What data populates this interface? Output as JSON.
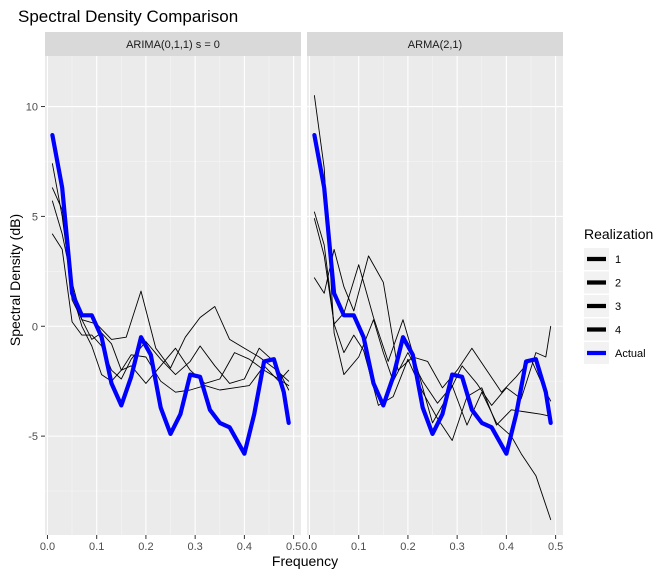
{
  "chart_data": {
    "type": "line",
    "title": "Spectral Density Comparison",
    "xlabel": "Frequency",
    "ylabel": "Spectral Density (dB)",
    "xlim": [
      -0.005,
      0.515
    ],
    "ylim": [
      -9.5,
      12.3
    ],
    "x_ticks": [
      0.0,
      0.1,
      0.2,
      0.3,
      0.4,
      0.5
    ],
    "x_tick_labels": [
      "0.0",
      "0.1",
      "0.2",
      "0.3",
      "0.4",
      "0.5"
    ],
    "y_ticks": [
      -5,
      0,
      5,
      10
    ],
    "y_tick_labels": [
      "-5",
      "0",
      "5",
      "10"
    ],
    "grid": true,
    "legend": {
      "title": "Realization",
      "position": "right",
      "entries": [
        {
          "label": "1",
          "color": "#000000"
        },
        {
          "label": "2",
          "color": "#000000"
        },
        {
          "label": "3",
          "color": "#000000"
        },
        {
          "label": "4",
          "color": "#000000"
        },
        {
          "label": "Actual",
          "color": "#0000FF"
        }
      ]
    },
    "panels": [
      {
        "strip": "ARIMA(0,1,1) s = 0",
        "series": [
          {
            "name": "1",
            "color": "#000000",
            "points": [
              [
                0.01,
                7.4
              ],
              [
                0.03,
                5.0
              ],
              [
                0.05,
                1.5
              ],
              [
                0.07,
                0.0
              ],
              [
                0.09,
                -0.9
              ],
              [
                0.11,
                -2.2
              ],
              [
                0.13,
                -2.5
              ],
              [
                0.15,
                -2.0
              ],
              [
                0.17,
                -1.8
              ],
              [
                0.2,
                -2.6
              ],
              [
                0.23,
                -1.8
              ],
              [
                0.26,
                -1.0
              ],
              [
                0.29,
                -2.0
              ],
              [
                0.32,
                -2.6
              ],
              [
                0.35,
                -2.4
              ],
              [
                0.38,
                -1.2
              ],
              [
                0.41,
                -1.5
              ],
              [
                0.44,
                -2.0
              ],
              [
                0.47,
                -2.4
              ],
              [
                0.49,
                -2.7
              ]
            ]
          },
          {
            "name": "2",
            "color": "#000000",
            "points": [
              [
                0.01,
                4.2
              ],
              [
                0.03,
                3.5
              ],
              [
                0.05,
                0.2
              ],
              [
                0.07,
                -0.4
              ],
              [
                0.09,
                -0.4
              ],
              [
                0.11,
                -0.9
              ],
              [
                0.13,
                -2.0
              ],
              [
                0.15,
                -2.4
              ],
              [
                0.17,
                -1.5
              ],
              [
                0.2,
                -0.7
              ],
              [
                0.23,
                -1.5
              ],
              [
                0.26,
                -2.2
              ],
              [
                0.29,
                -1.6
              ],
              [
                0.31,
                -0.9
              ],
              [
                0.34,
                -1.8
              ],
              [
                0.37,
                -2.6
              ],
              [
                0.4,
                -2.4
              ],
              [
                0.43,
                -1.0
              ],
              [
                0.46,
                -1.6
              ],
              [
                0.49,
                -2.9
              ]
            ]
          },
          {
            "name": "3",
            "color": "#000000",
            "points": [
              [
                0.01,
                5.7
              ],
              [
                0.03,
                4.2
              ],
              [
                0.05,
                2.0
              ],
              [
                0.07,
                0.3
              ],
              [
                0.09,
                -0.6
              ],
              [
                0.11,
                -0.3
              ],
              [
                0.13,
                -0.8
              ],
              [
                0.15,
                -2.0
              ],
              [
                0.17,
                -1.3
              ],
              [
                0.2,
                -1.4
              ],
              [
                0.23,
                -2.5
              ],
              [
                0.26,
                -3.0
              ],
              [
                0.29,
                -2.9
              ],
              [
                0.32,
                -2.7
              ],
              [
                0.35,
                -2.9
              ],
              [
                0.38,
                -2.8
              ],
              [
                0.41,
                -2.7
              ],
              [
                0.44,
                -1.8
              ],
              [
                0.47,
                -2.5
              ],
              [
                0.49,
                -2.0
              ]
            ]
          },
          {
            "name": "4",
            "color": "#000000",
            "points": [
              [
                0.01,
                6.3
              ],
              [
                0.03,
                5.3
              ],
              [
                0.05,
                1.2
              ],
              [
                0.07,
                0.3
              ],
              [
                0.1,
                0.1
              ],
              [
                0.13,
                -0.6
              ],
              [
                0.16,
                -0.5
              ],
              [
                0.19,
                1.6
              ],
              [
                0.22,
                -1.0
              ],
              [
                0.25,
                -1.9
              ],
              [
                0.28,
                -0.5
              ],
              [
                0.31,
                0.4
              ],
              [
                0.34,
                0.9
              ],
              [
                0.37,
                -0.6
              ],
              [
                0.4,
                -1.0
              ],
              [
                0.43,
                -1.4
              ],
              [
                0.46,
                -1.9
              ],
              [
                0.49,
                -2.5
              ]
            ]
          },
          {
            "name": "Actual",
            "color": "#0000FF",
            "points": [
              [
                0.01,
                8.7
              ],
              [
                0.03,
                6.3
              ],
              [
                0.05,
                1.5
              ],
              [
                0.07,
                0.5
              ],
              [
                0.09,
                0.5
              ],
              [
                0.11,
                -0.5
              ],
              [
                0.13,
                -2.6
              ],
              [
                0.15,
                -3.6
              ],
              [
                0.17,
                -2.3
              ],
              [
                0.19,
                -0.5
              ],
              [
                0.21,
                -1.3
              ],
              [
                0.23,
                -3.7
              ],
              [
                0.25,
                -4.9
              ],
              [
                0.27,
                -4.0
              ],
              [
                0.29,
                -2.2
              ],
              [
                0.31,
                -2.3
              ],
              [
                0.33,
                -3.8
              ],
              [
                0.35,
                -4.4
              ],
              [
                0.37,
                -4.6
              ],
              [
                0.4,
                -5.8
              ],
              [
                0.42,
                -4.0
              ],
              [
                0.44,
                -1.6
              ],
              [
                0.46,
                -1.5
              ],
              [
                0.48,
                -3.0
              ],
              [
                0.49,
                -4.4
              ]
            ]
          }
        ]
      },
      {
        "strip": "ARMA(2,1)",
        "series": [
          {
            "name": "1",
            "color": "#000000",
            "points": [
              [
                0.01,
                10.5
              ],
              [
                0.03,
                7.2
              ],
              [
                0.05,
                -0.3
              ],
              [
                0.07,
                -2.2
              ],
              [
                0.1,
                -1.4
              ],
              [
                0.13,
                0.3
              ],
              [
                0.15,
                -1.2
              ],
              [
                0.17,
                -2.5
              ],
              [
                0.2,
                -1.2
              ],
              [
                0.23,
                -2.5
              ],
              [
                0.26,
                -3.5
              ],
              [
                0.29,
                -2.7
              ],
              [
                0.32,
                -4.5
              ],
              [
                0.35,
                -3.0
              ],
              [
                0.38,
                -4.4
              ],
              [
                0.41,
                -5.0
              ],
              [
                0.43,
                -5.8
              ],
              [
                0.46,
                -6.8
              ],
              [
                0.49,
                -8.8
              ]
            ]
          },
          {
            "name": "2",
            "color": "#000000",
            "points": [
              [
                0.01,
                4.9
              ],
              [
                0.03,
                3.2
              ],
              [
                0.05,
                0.1
              ],
              [
                0.07,
                0.6
              ],
              [
                0.1,
                2.8
              ],
              [
                0.13,
                0.4
              ],
              [
                0.16,
                -1.6
              ],
              [
                0.19,
                0.3
              ],
              [
                0.22,
                -2.0
              ],
              [
                0.25,
                -4.4
              ],
              [
                0.28,
                -3.2
              ],
              [
                0.31,
                -1.8
              ],
              [
                0.34,
                -2.6
              ],
              [
                0.37,
                -3.6
              ],
              [
                0.4,
                -2.8
              ],
              [
                0.43,
                -3.3
              ],
              [
                0.46,
                -1.2
              ],
              [
                0.48,
                -1.4
              ],
              [
                0.49,
                0.0
              ]
            ]
          },
          {
            "name": "3",
            "color": "#000000",
            "points": [
              [
                0.01,
                2.2
              ],
              [
                0.03,
                1.5
              ],
              [
                0.05,
                3.5
              ],
              [
                0.07,
                1.8
              ],
              [
                0.09,
                0.7
              ],
              [
                0.12,
                3.2
              ],
              [
                0.15,
                2.0
              ],
              [
                0.18,
                -2.0
              ],
              [
                0.21,
                -1.4
              ],
              [
                0.24,
                -1.6
              ],
              [
                0.27,
                -2.8
              ],
              [
                0.3,
                -2.0
              ],
              [
                0.33,
                -1.0
              ],
              [
                0.36,
                -2.0
              ],
              [
                0.39,
                -3.0
              ],
              [
                0.42,
                -2.3
              ],
              [
                0.45,
                -1.5
              ],
              [
                0.48,
                -3.0
              ],
              [
                0.49,
                -3.4
              ]
            ]
          },
          {
            "name": "4",
            "color": "#000000",
            "points": [
              [
                0.01,
                5.2
              ],
              [
                0.03,
                3.7
              ],
              [
                0.05,
                0.1
              ],
              [
                0.07,
                -1.2
              ],
              [
                0.09,
                -0.4
              ],
              [
                0.11,
                -1.1
              ],
              [
                0.14,
                -3.6
              ],
              [
                0.17,
                -3.2
              ],
              [
                0.2,
                -1.5
              ],
              [
                0.23,
                -3.0
              ],
              [
                0.26,
                -4.2
              ],
              [
                0.29,
                -5.2
              ],
              [
                0.32,
                -3.2
              ],
              [
                0.35,
                -2.8
              ],
              [
                0.38,
                -4.5
              ],
              [
                0.41,
                -3.8
              ],
              [
                0.44,
                -3.9
              ],
              [
                0.47,
                -4.0
              ],
              [
                0.49,
                -4.1
              ]
            ]
          },
          {
            "name": "Actual",
            "color": "#0000FF",
            "points": [
              [
                0.01,
                8.7
              ],
              [
                0.03,
                6.3
              ],
              [
                0.05,
                1.5
              ],
              [
                0.07,
                0.5
              ],
              [
                0.09,
                0.5
              ],
              [
                0.11,
                -0.5
              ],
              [
                0.13,
                -2.6
              ],
              [
                0.15,
                -3.6
              ],
              [
                0.17,
                -2.3
              ],
              [
                0.19,
                -0.5
              ],
              [
                0.21,
                -1.3
              ],
              [
                0.23,
                -3.7
              ],
              [
                0.25,
                -4.9
              ],
              [
                0.27,
                -4.0
              ],
              [
                0.29,
                -2.2
              ],
              [
                0.31,
                -2.3
              ],
              [
                0.33,
                -3.8
              ],
              [
                0.35,
                -4.4
              ],
              [
                0.37,
                -4.6
              ],
              [
                0.4,
                -5.8
              ],
              [
                0.42,
                -4.0
              ],
              [
                0.44,
                -1.6
              ],
              [
                0.46,
                -1.5
              ],
              [
                0.48,
                -3.0
              ],
              [
                0.49,
                -4.4
              ]
            ]
          }
        ]
      }
    ]
  }
}
